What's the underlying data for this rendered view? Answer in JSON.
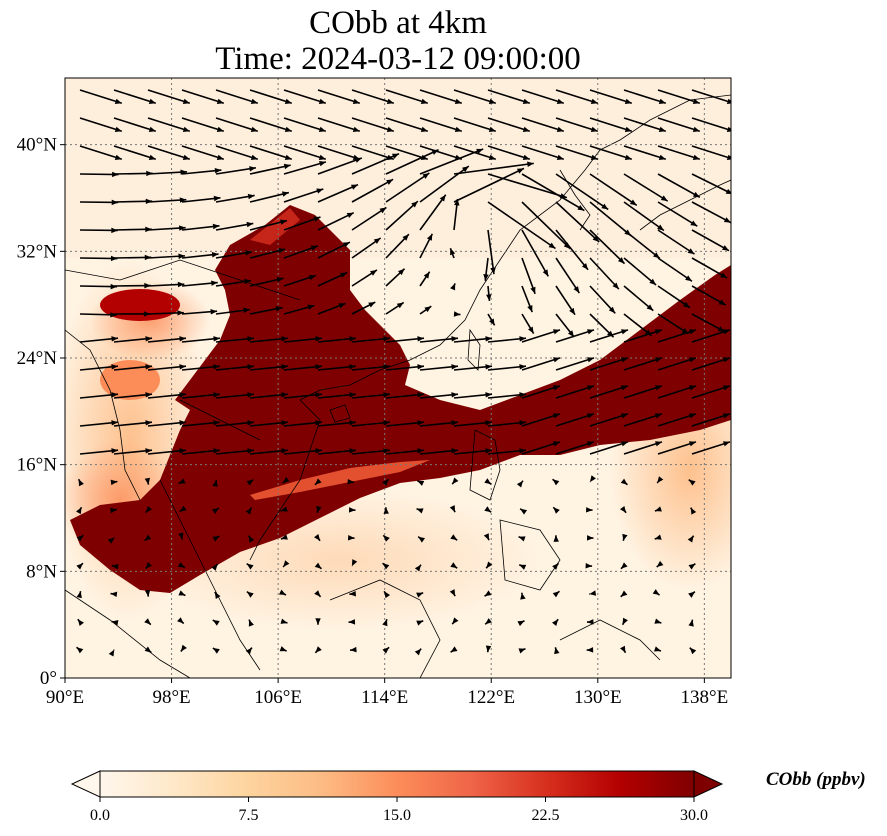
{
  "title": {
    "line1": "CObb at 4km",
    "line2": "Time: 2024-03-12 09:00:00"
  },
  "map": {
    "projection": "PlateCarree",
    "lon_range": [
      90,
      140
    ],
    "lat_range": [
      0,
      45
    ],
    "gridlines": "dotted",
    "coastlines": true,
    "lon_ticks": [
      {
        "value": 90,
        "label": "90°E"
      },
      {
        "value": 98,
        "label": "98°E"
      },
      {
        "value": 106,
        "label": "106°E"
      },
      {
        "value": 114,
        "label": "114°E"
      },
      {
        "value": 122,
        "label": "122°E"
      },
      {
        "value": 130,
        "label": "130°E"
      },
      {
        "value": 138,
        "label": "138°E"
      }
    ],
    "lat_ticks": [
      {
        "value": 0,
        "label": "0°"
      },
      {
        "value": 8,
        "label": "8°N"
      },
      {
        "value": 16,
        "label": "16°N"
      },
      {
        "value": 24,
        "label": "24°N"
      },
      {
        "value": 32,
        "label": "32°N"
      },
      {
        "value": 40,
        "label": "40°N"
      }
    ],
    "plume_description_color": "#7f0000",
    "wind_vectors": true
  },
  "colorbar": {
    "label": "CObb (ppbv)",
    "min": 0.0,
    "max": 30.0,
    "extend": "both",
    "colormap": "OrRd",
    "stops": [
      "#fff7ec",
      "#fee8c8",
      "#fdd49e",
      "#fdbb84",
      "#fc8d59",
      "#ef6548",
      "#d7301f",
      "#b30000",
      "#7f0000"
    ],
    "ticks": [
      {
        "value": 0.0,
        "label": "0.0"
      },
      {
        "value": 7.5,
        "label": "7.5"
      },
      {
        "value": 15.0,
        "label": "15.0"
      },
      {
        "value": 22.5,
        "label": "22.5"
      },
      {
        "value": 30.0,
        "label": "30.0"
      }
    ]
  }
}
